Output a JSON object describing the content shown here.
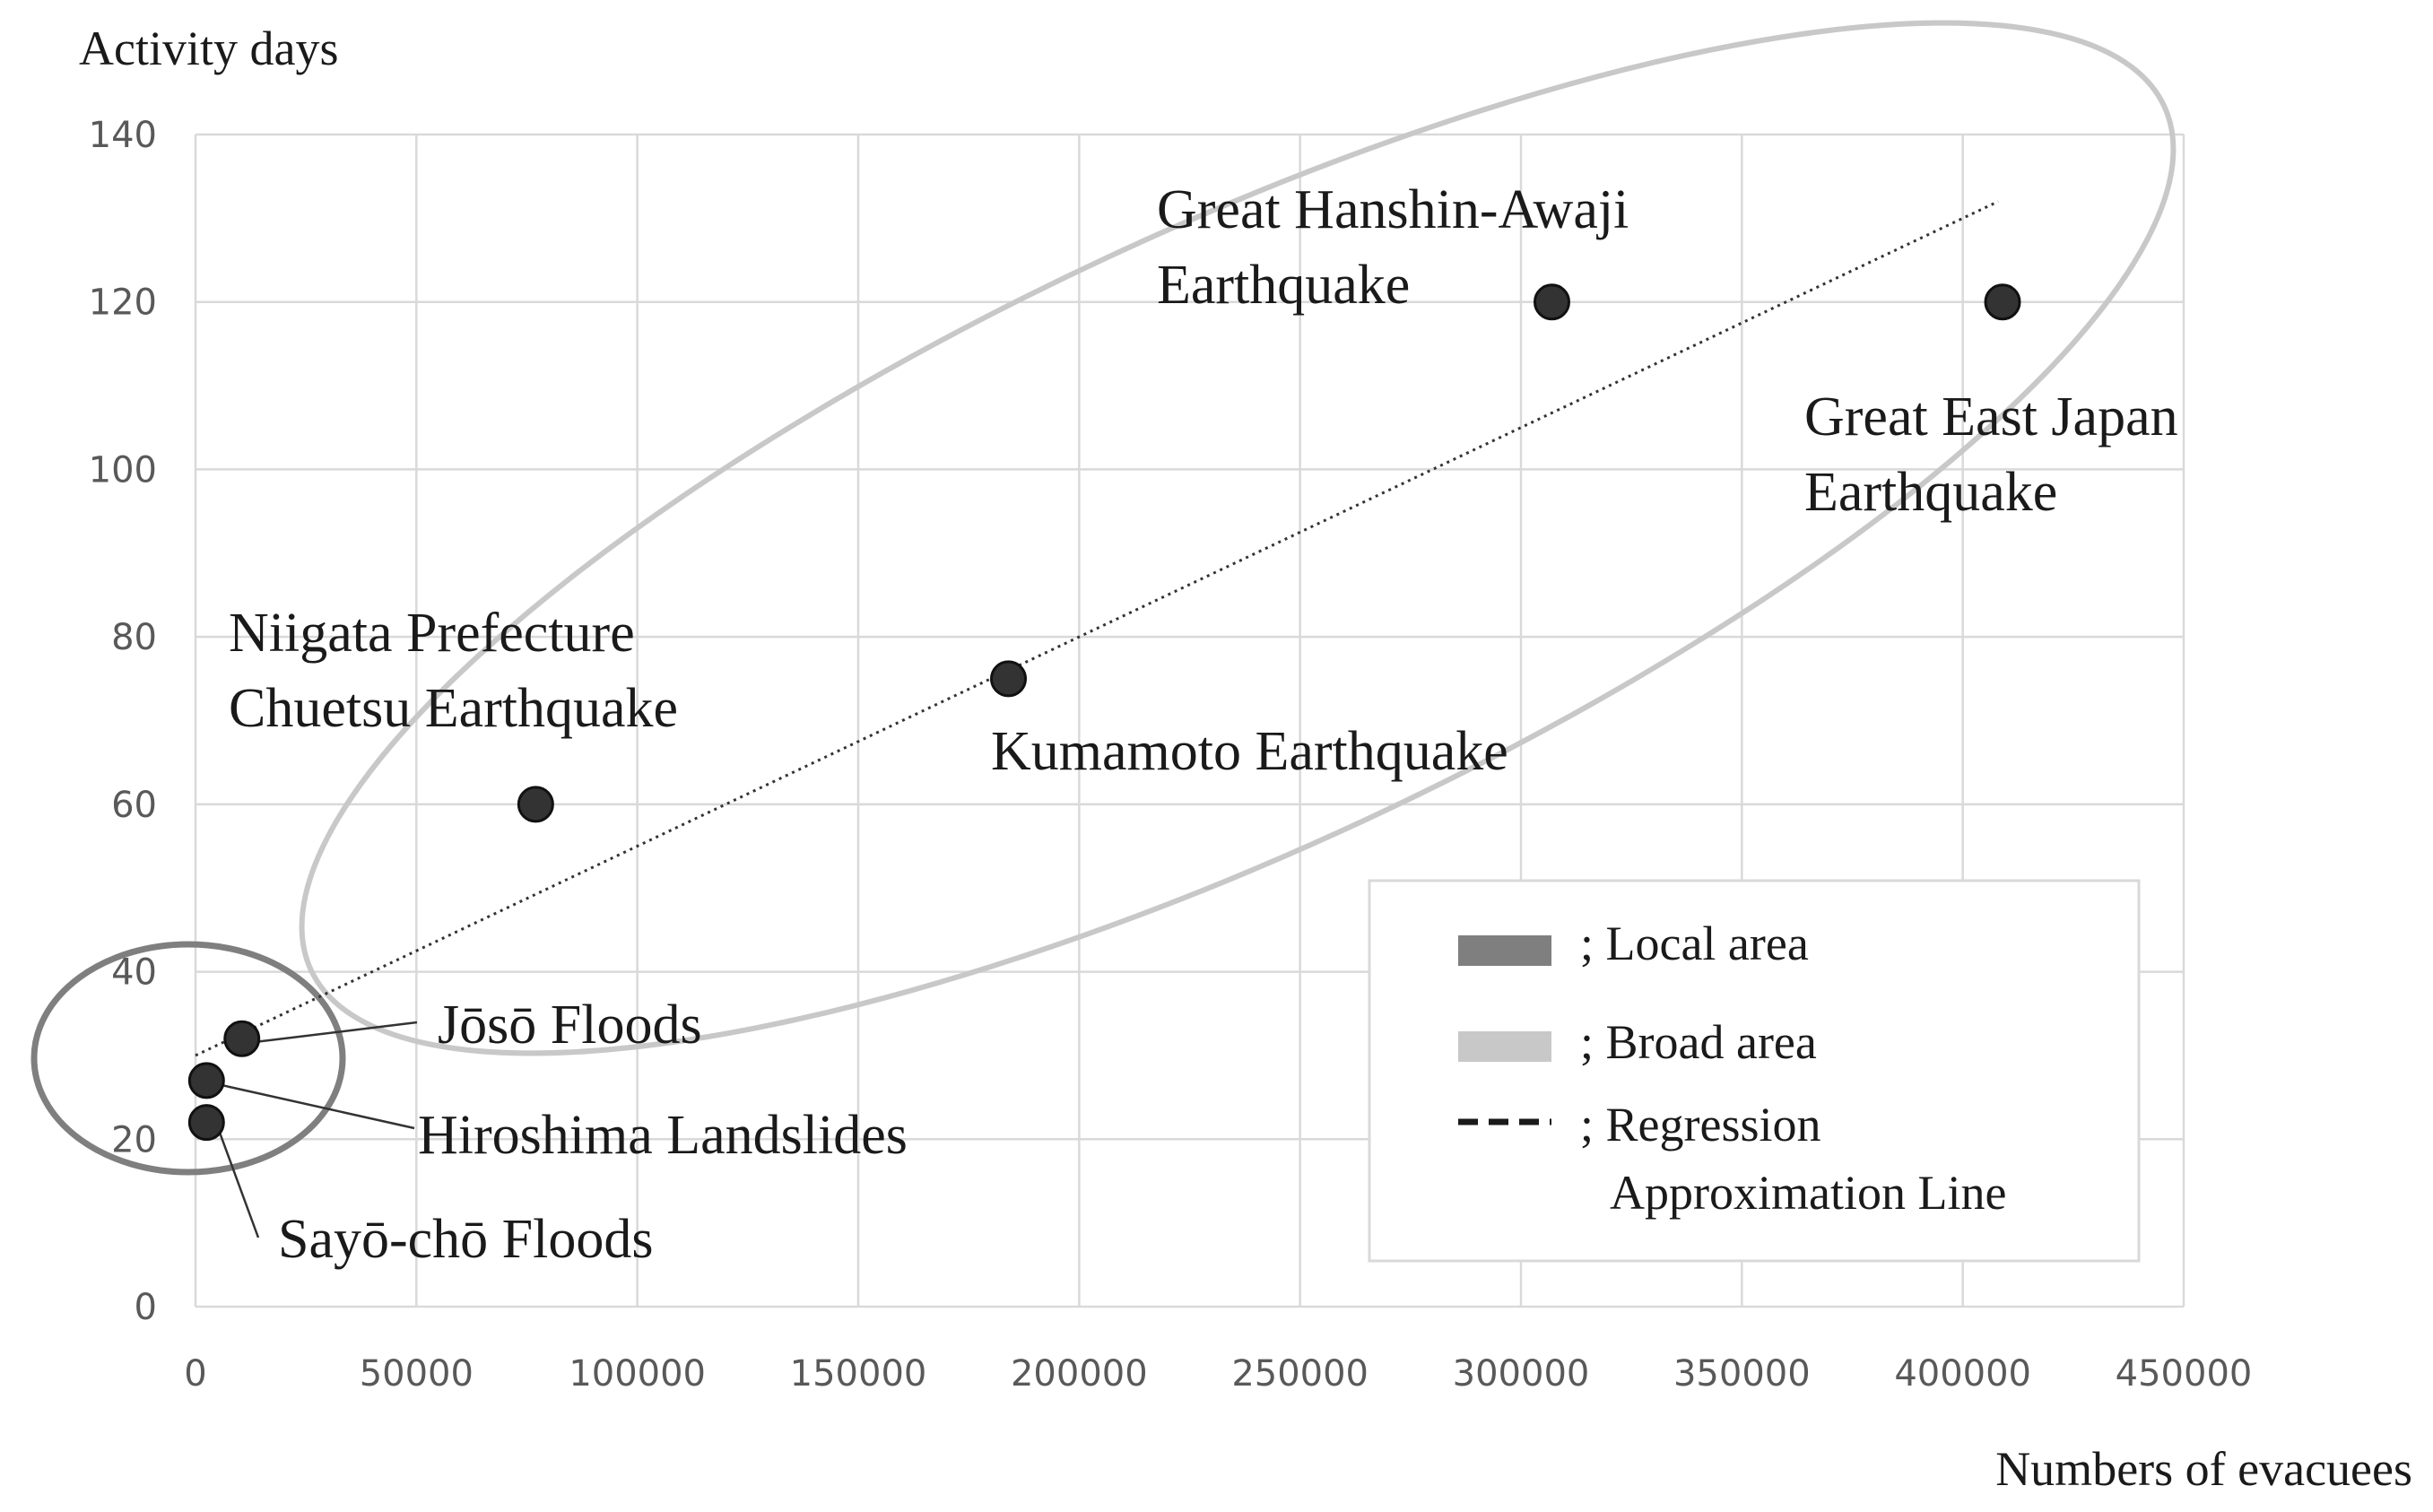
{
  "chart_data": {
    "type": "scatter",
    "title": "",
    "xlabel": "Numbers of evacuees",
    "ylabel": "Activity days",
    "xlim": [
      0,
      450000
    ],
    "ylim": [
      0,
      140
    ],
    "x_ticks": [
      0,
      50000,
      100000,
      150000,
      200000,
      250000,
      300000,
      350000,
      400000,
      450000
    ],
    "y_ticks": [
      0,
      20,
      40,
      60,
      80,
      100,
      120,
      140
    ],
    "grid": true,
    "points": [
      {
        "name": "Great Hanshin-Awaji Earthquake",
        "label_lines": [
          "Great Hanshin-Awaji",
          "Earthquake"
        ],
        "x": 307000,
        "y": 120,
        "group": "broad"
      },
      {
        "name": "Great East Japan Earthquake",
        "label_lines": [
          "Great East Japan",
          "Earthquake"
        ],
        "x": 409000,
        "y": 120,
        "group": "broad"
      },
      {
        "name": "Kumamoto Earthquake",
        "label_lines": [
          "Kumamoto Earthquake"
        ],
        "x": 184000,
        "y": 75,
        "group": "broad"
      },
      {
        "name": "Niigata Prefecture Chuetsu Earthquake",
        "label_lines": [
          "Niigata Prefecture",
          "Chuetsu Earthquake"
        ],
        "x": 77000,
        "y": 60,
        "group": "broad"
      },
      {
        "name": "Jōsō Floods",
        "label_lines": [
          "Jōsō Floods"
        ],
        "x": 10500,
        "y": 32,
        "group": "local"
      },
      {
        "name": "Hiroshima Landslides",
        "label_lines": [
          "Hiroshima Landslides"
        ],
        "x": 2500,
        "y": 27,
        "group": "local"
      },
      {
        "name": "Sayō-chō Floods",
        "label_lines": [
          "Sayō-chō Floods"
        ],
        "x": 2500,
        "y": 22,
        "group": "local"
      }
    ],
    "regression": {
      "x_start": 0,
      "y_start": 30,
      "x_end": 408000,
      "y_end": 132
    },
    "legend": {
      "position": "bottom-right",
      "entries": [
        {
          "key": "local",
          "label": "; Local area",
          "color": "#7f7f7f"
        },
        {
          "key": "broad",
          "label": "; Broad area",
          "color": "#c8c8c8"
        },
        {
          "key": "regression",
          "label_lines": [
            "; Regression",
            "Approximation Line"
          ],
          "color": "#1a1a1a"
        }
      ]
    },
    "colors": {
      "point": "#333333",
      "grid": "#d9d9d9",
      "regression": "#333333"
    }
  }
}
